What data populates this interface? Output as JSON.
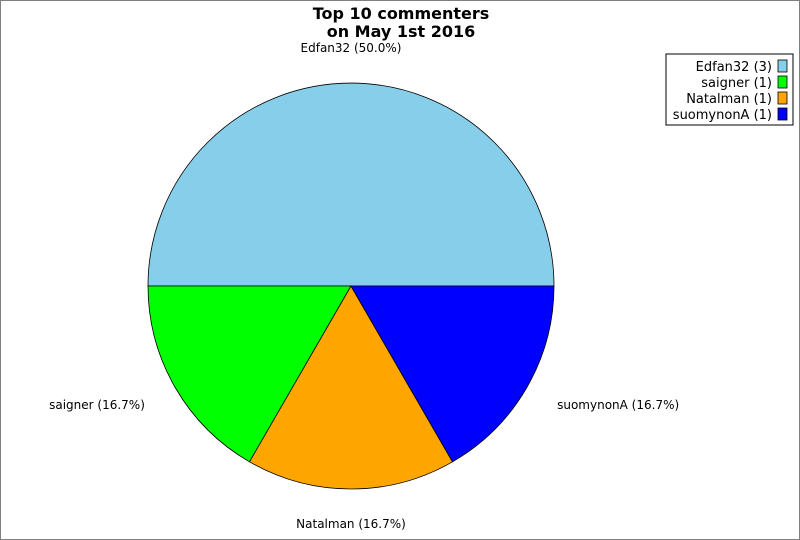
{
  "chart_data": {
    "type": "pie",
    "title_lines": [
      "Top 10 commenters",
      "on May 1st 2016"
    ],
    "slices": [
      {
        "name": "Edfan32",
        "value": 3,
        "percent_label": "Edfan32 (50.0%)",
        "legend_label": "Edfan32 (3)",
        "color": "#87ceeb"
      },
      {
        "name": "saigner",
        "value": 1,
        "percent_label": "saigner (16.7%)",
        "legend_label": "saigner (1)",
        "color": "#00ff00"
      },
      {
        "name": "Natalman",
        "value": 1,
        "percent_label": "Natalman (16.7%)",
        "legend_label": "Natalman (1)",
        "color": "#ffa500"
      },
      {
        "name": "suomynonA",
        "value": 1,
        "percent_label": "suomynonA (16.7%)",
        "legend_label": "suomynonA (1)",
        "color": "#0000ff"
      }
    ],
    "legend_position": "top-right"
  }
}
